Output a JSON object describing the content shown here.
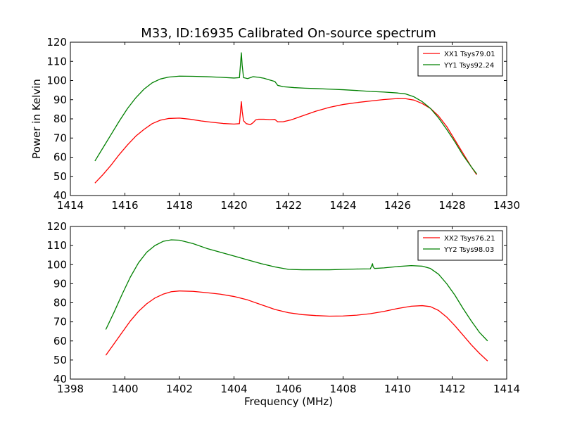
{
  "title": "M33, ID:16935 Calibrated On-source spectrum",
  "chart_data": [
    {
      "type": "line",
      "title": "M33, ID:16935 Calibrated On-source spectrum",
      "xlabel": "",
      "ylabel": "Power in Kelvin",
      "xlim": [
        1414,
        1430
      ],
      "ylim": [
        40,
        120
      ],
      "xticks": [
        "1414",
        "1416",
        "1418",
        "1420",
        "1422",
        "1424",
        "1426",
        "1428",
        "1430"
      ],
      "yticks": [
        "40",
        "50",
        "60",
        "70",
        "80",
        "90",
        "100",
        "110",
        "120"
      ],
      "legend": "top-right",
      "grid": false,
      "series": [
        {
          "name": "XX1 Tsys79.01",
          "color": "#ff0000",
          "x": [
            1414.9,
            1415.2,
            1415.5,
            1415.8,
            1416.1,
            1416.4,
            1416.7,
            1417.0,
            1417.3,
            1417.6,
            1418.0,
            1418.4,
            1418.8,
            1419.2,
            1419.6,
            1420.0,
            1420.2,
            1420.27,
            1420.3,
            1420.35,
            1420.45,
            1420.6,
            1420.7,
            1420.8,
            1420.9,
            1421.1,
            1421.3,
            1421.5,
            1421.6,
            1421.8,
            1422.1,
            1422.5,
            1423.0,
            1423.5,
            1424.0,
            1424.5,
            1425.0,
            1425.5,
            1426.0,
            1426.3,
            1426.6,
            1426.9,
            1427.2,
            1427.5,
            1427.8,
            1428.1,
            1428.4,
            1428.7,
            1428.9
          ],
          "y": [
            46.5,
            51,
            56,
            61.5,
            66.5,
            71,
            74.5,
            77.5,
            79.3,
            80.2,
            80.4,
            79.8,
            78.9,
            78.2,
            77.6,
            77.3,
            77.5,
            89.0,
            84.0,
            79.0,
            77.5,
            77.0,
            78.0,
            79.5,
            79.8,
            79.8,
            79.6,
            79.7,
            78.5,
            78.5,
            79.5,
            81.5,
            84.0,
            86.0,
            87.5,
            88.5,
            89.3,
            90.1,
            90.6,
            90.5,
            89.8,
            88.0,
            85.5,
            81.5,
            76.0,
            69.0,
            62.0,
            55.0,
            50.8
          ]
        },
        {
          "name": "YY1 Tsys92.24",
          "color": "#008000",
          "x": [
            1414.9,
            1415.2,
            1415.5,
            1415.8,
            1416.1,
            1416.4,
            1416.7,
            1417.0,
            1417.3,
            1417.6,
            1418.0,
            1418.5,
            1419.0,
            1419.5,
            1420.0,
            1420.2,
            1420.27,
            1420.3,
            1420.35,
            1420.5,
            1420.7,
            1420.9,
            1421.1,
            1421.3,
            1421.5,
            1421.6,
            1421.8,
            1422.2,
            1422.6,
            1423.0,
            1423.5,
            1424.0,
            1424.5,
            1425.0,
            1425.5,
            1426.0,
            1426.3,
            1426.6,
            1426.9,
            1427.2,
            1427.5,
            1427.8,
            1428.1,
            1428.4,
            1428.7,
            1428.9
          ],
          "y": [
            58.0,
            65.0,
            72.0,
            79.0,
            85.5,
            91.0,
            95.5,
            98.8,
            100.8,
            101.8,
            102.3,
            102.2,
            102.0,
            101.7,
            101.3,
            101.5,
            114.5,
            108.0,
            101.5,
            101.0,
            102.0,
            101.7,
            101.2,
            100.3,
            99.5,
            97.5,
            96.8,
            96.3,
            96.0,
            95.8,
            95.5,
            95.2,
            94.8,
            94.3,
            94.0,
            93.5,
            93.0,
            91.5,
            89.0,
            85.5,
            80.5,
            74.5,
            68.0,
            61.0,
            55.0,
            51.3
          ]
        }
      ]
    },
    {
      "type": "line",
      "title": "",
      "xlabel": "Frequency (MHz)",
      "ylabel": "",
      "xlim": [
        1398,
        1414
      ],
      "ylim": [
        40,
        120
      ],
      "xticks": [
        "1398",
        "1400",
        "1402",
        "1404",
        "1406",
        "1408",
        "1410",
        "1412",
        "1414"
      ],
      "yticks": [
        "40",
        "50",
        "60",
        "70",
        "80",
        "90",
        "100",
        "110",
        "120"
      ],
      "legend": "top-right",
      "grid": false,
      "series": [
        {
          "name": "XX2 Tsys76.21",
          "color": "#ff0000",
          "x": [
            1399.3,
            1399.6,
            1399.9,
            1400.2,
            1400.5,
            1400.8,
            1401.1,
            1401.4,
            1401.7,
            1402.0,
            1402.5,
            1403.0,
            1403.5,
            1404.0,
            1404.5,
            1405.0,
            1405.5,
            1406.0,
            1406.5,
            1407.0,
            1407.5,
            1408.0,
            1408.5,
            1409.0,
            1409.5,
            1410.0,
            1410.5,
            1410.9,
            1411.2,
            1411.5,
            1411.8,
            1412.1,
            1412.4,
            1412.7,
            1413.0,
            1413.3
          ],
          "y": [
            52.5,
            58.5,
            64.5,
            70.5,
            75.5,
            79.5,
            82.5,
            84.5,
            85.8,
            86.2,
            86.0,
            85.3,
            84.5,
            83.3,
            81.5,
            79.0,
            76.5,
            74.8,
            73.8,
            73.3,
            73.0,
            73.1,
            73.5,
            74.3,
            75.5,
            77.0,
            78.2,
            78.5,
            78.0,
            76.0,
            72.5,
            68.0,
            63.0,
            58.0,
            53.5,
            49.5
          ]
        },
        {
          "name": "YY2 Tsys98.03",
          "color": "#008000",
          "x": [
            1399.3,
            1399.6,
            1399.9,
            1400.2,
            1400.5,
            1400.8,
            1401.1,
            1401.4,
            1401.7,
            1402.0,
            1402.5,
            1403.0,
            1403.5,
            1404.0,
            1404.5,
            1405.0,
            1405.5,
            1406.0,
            1406.5,
            1407.0,
            1407.5,
            1408.0,
            1408.5,
            1409.0,
            1409.08,
            1409.1,
            1409.15,
            1409.5,
            1410.0,
            1410.5,
            1410.9,
            1411.2,
            1411.5,
            1411.8,
            1412.1,
            1412.4,
            1412.7,
            1413.0,
            1413.3
          ],
          "y": [
            66.0,
            75.0,
            84.5,
            93.5,
            101.0,
            106.5,
            110.0,
            112.2,
            113.0,
            112.8,
            111.0,
            108.5,
            106.5,
            104.5,
            102.5,
            100.5,
            98.8,
            97.5,
            97.3,
            97.3,
            97.3,
            97.5,
            97.7,
            97.8,
            100.5,
            99.0,
            98.0,
            98.3,
            99.0,
            99.5,
            99.2,
            98.0,
            95.0,
            90.0,
            84.0,
            77.0,
            70.5,
            64.5,
            60.0
          ]
        }
      ]
    }
  ]
}
